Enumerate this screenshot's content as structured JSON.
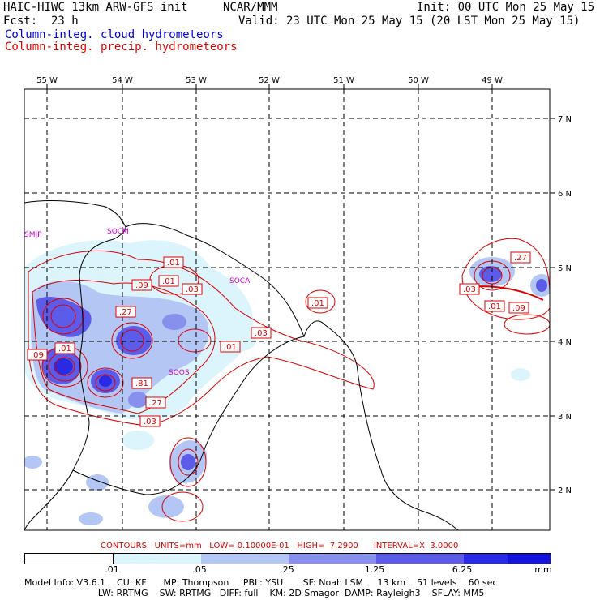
{
  "header": {
    "model_title": "HAIC-HIWC 13km ARW-GFS init",
    "org": "NCAR/MMM",
    "init_line": "Init: 00 UTC Mon 25 May 15",
    "fcst_label": "Fcst:",
    "fcst_value": "23 h",
    "valid_line": "Valid: 23 UTC Mon 25 May 15 (20 LST Mon 25 May 15)",
    "field_cloud": "Column-integ. cloud hydrometeors",
    "field_precip": "Column-integ. precip. hydrometeors"
  },
  "map": {
    "lon_labels": [
      "55 W",
      "54 W",
      "53 W",
      "52 W",
      "51 W",
      "50 W",
      "49 W"
    ],
    "lat_labels": [
      "7 N",
      "6 N",
      "5 N",
      "4 N",
      "3 N",
      "2 N"
    ],
    "station_labels": [
      "SMJP",
      "SOCM",
      "SOCA",
      "SOOS"
    ],
    "contour_value_labels": [
      ".01",
      ".09",
      ".01",
      ".03",
      ".27",
      ".01",
      ".03",
      ".09",
      ".01",
      ".81",
      ".27",
      ".03",
      ".01",
      ".03",
      ".27",
      ".01",
      ".09"
    ],
    "colors": {
      "cloud_light": "#dcf4fc",
      "cloud_mid": "#a8b8f0",
      "cloud_dark": "#5a5ae6",
      "precip_contour": "#dd0000",
      "grid": "#000000",
      "station": "#cc00cc"
    }
  },
  "contours_line": {
    "text": "CONTOURS:  UNITS=mm   LOW= 0.10000E-01   HIGH=  7.2900      INTERVAL=X  3.0000"
  },
  "colorbar": {
    "ticks": [
      ".01",
      ".05",
      ".25",
      "1.25",
      "6.25"
    ],
    "units": "mm",
    "colors": [
      "#ffffff",
      "#dcf4fc",
      "#b4c6f4",
      "#8890ee",
      "#5c5ce8",
      "#2a2ae4",
      "#1414dc"
    ]
  },
  "footer": {
    "line1": "Model Info: V3.6.1    CU: KF      MP: Thompson     PBL: YSU       SF: Noah LSM     13 km    51 levels    60 sec",
    "line2": "                          LW: RRTMG    SW: RRTMG   DIFF: full    KM: 2D Smagor  DAMP: Rayleigh3    SFLAY: MM5"
  }
}
